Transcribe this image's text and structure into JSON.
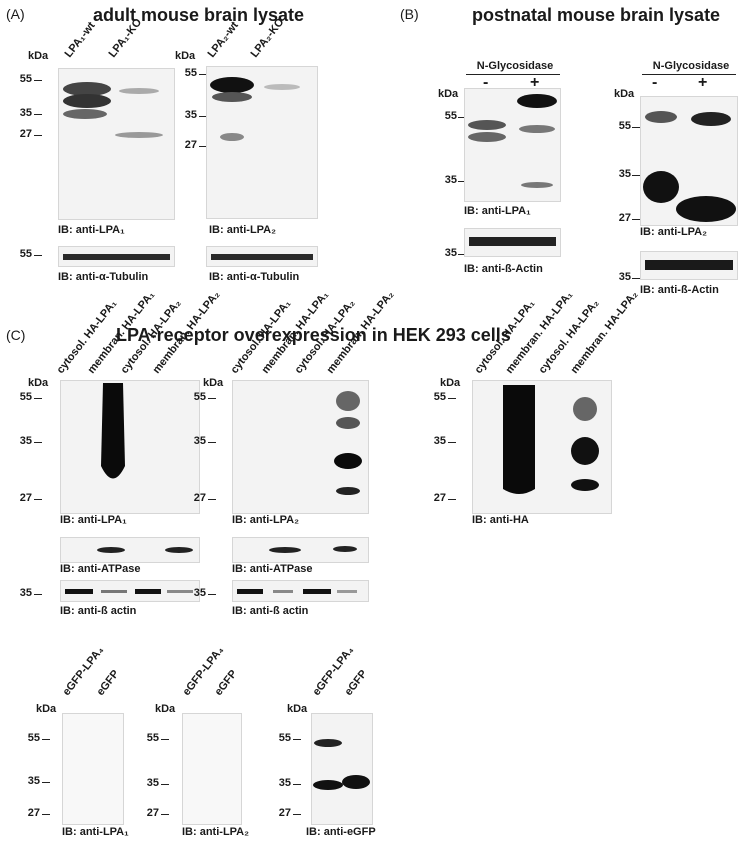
{
  "panels": {
    "a": {
      "label": "(A)",
      "title": "adult mouse brain lysate"
    },
    "b": {
      "label": "(B)",
      "title": "postnatal mouse brain lysate"
    },
    "c": {
      "label": "(C)",
      "title": "LPA-receptor overexpression in HEK 293 cells"
    }
  },
  "common": {
    "kda": "kDa",
    "m55": "55",
    "m35": "35",
    "m27": "27"
  },
  "a_blots": {
    "lpa1": {
      "lanes": [
        "LPA₁-wt",
        "LPA₁-KO"
      ],
      "ib": "IB: anti-LPA₁",
      "loading": "IB: anti-α-Tubulin"
    },
    "lpa2": {
      "lanes": [
        "LPA₂-wt",
        "LPA₂-KO"
      ],
      "ib": "IB: anti-LPA₂",
      "loading": "IB: anti-α-Tubulin"
    }
  },
  "b_blots": {
    "header": "N-Glycosidase",
    "minus": "-",
    "plus": "+",
    "lpa1": {
      "ib": "IB: anti-LPA₁",
      "loading": "IB: anti-ß-Actin"
    },
    "lpa2": {
      "ib": "IB: anti-LPA₂",
      "loading": "IB: anti-ß-Actin"
    }
  },
  "c_blots": {
    "lanes": [
      "cytosol. HA-LPA₁",
      "membran. HA-LPA₁",
      "cytosol. HA-LPA₂",
      "membran. HA-LPA₂"
    ],
    "ha_lanes": [
      "cytosol. HA-LPA₁",
      "membran. HA-LPA₁",
      "cytosol. HA-LPA₂",
      "membran. HA-LPA₂"
    ],
    "lpa1": {
      "ib": "IB: anti-LPA₁",
      "atpase": "IB: anti-ATPase",
      "actin": "IB: anti-ß actin"
    },
    "lpa2": {
      "ib": "IB: anti-LPA₂",
      "atpase": "IB: anti-ATPase",
      "actin": "IB: anti-ß actin"
    },
    "ha": {
      "ib": "IB: anti-HA"
    },
    "egfp_lanes": [
      "eGFP-LPA₄",
      "eGFP"
    ],
    "egfp1": {
      "ib": "IB: anti-LPA₁"
    },
    "egfp2": {
      "ib": "IB: anti-LPA₂"
    },
    "egfp3": {
      "ib": "IB: anti-eGFP"
    }
  }
}
